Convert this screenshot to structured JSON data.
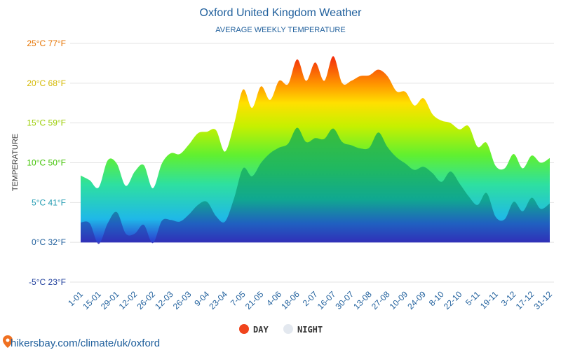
{
  "title": "Oxford United Kingdom Weather",
  "subtitle": "AVERAGE WEEKLY TEMPERATURE",
  "source": "hikersbay.com/climate/uk/oxford",
  "legend": [
    {
      "label": "DAY",
      "color": "#f0441c"
    },
    {
      "label": "NIGHT",
      "color": "#e3e8ef"
    }
  ],
  "chart_data": {
    "type": "area",
    "title": "Oxford United Kingdom Weather",
    "subtitle": "AVERAGE WEEKLY TEMPERATURE",
    "ylabel": "TEMPERATURE",
    "ylim": [
      -5,
      25
    ],
    "grid": true,
    "legend_position": "bottom",
    "y_ticks": [
      {
        "value": 25,
        "label": "25°C 77°F",
        "color": "#e67300"
      },
      {
        "value": 20,
        "label": "20°C 68°F",
        "color": "#d4b800"
      },
      {
        "value": 15,
        "label": "15°C 59°F",
        "color": "#9acd00"
      },
      {
        "value": 10,
        "label": "10°C 50°F",
        "color": "#3ec200"
      },
      {
        "value": 5,
        "label": "5°C 41°F",
        "color": "#1f9ab0"
      },
      {
        "value": 0,
        "label": "0°C 32°F",
        "color": "#1f5f9c"
      },
      {
        "value": -5,
        "label": "-5°C 23°F",
        "color": "#1f3f9c"
      }
    ],
    "x_labels": [
      "1-01",
      "15-01",
      "29-01",
      "12-02",
      "26-02",
      "12-03",
      "26-03",
      "9-04",
      "23-04",
      "7-05",
      "21-05",
      "4-06",
      "18-06",
      "2-07",
      "16-07",
      "30-07",
      "13-08",
      "27-08",
      "10-09",
      "24-09",
      "8-10",
      "22-10",
      "5-11",
      "19-11",
      "3-12",
      "17-12",
      "31-12"
    ],
    "series": [
      {
        "name": "DAY",
        "values": [
          8.4,
          7.8,
          6.9,
          10.3,
          9.9,
          7.1,
          8.9,
          9.7,
          6.8,
          9.9,
          11.2,
          11.1,
          12.3,
          13.7,
          13.9,
          14.1,
          11.4,
          14.8,
          19.2,
          16.9,
          19.6,
          17.9,
          20.3,
          19.9,
          23.0,
          20.3,
          22.6,
          20.3,
          23.4,
          20.0,
          20.3,
          20.9,
          21.0,
          21.7,
          20.9,
          19.0,
          18.9,
          17.2,
          18.1,
          16.1,
          15.3,
          15.0,
          14.2,
          14.6,
          12.0,
          12.5,
          9.6,
          9.3,
          11.1,
          9.3,
          10.9,
          10.0,
          10.6
        ]
      },
      {
        "name": "NIGHT",
        "values": [
          2.5,
          2.4,
          -0.2,
          2.4,
          3.8,
          1.1,
          1.1,
          2.2,
          -0.1,
          2.7,
          2.8,
          2.6,
          3.5,
          4.7,
          5.1,
          3.3,
          2.6,
          5.5,
          9.3,
          8.3,
          10.0,
          11.2,
          11.9,
          12.4,
          14.4,
          12.6,
          13.1,
          13.0,
          14.3,
          12.6,
          12.2,
          11.8,
          11.9,
          13.8,
          12.0,
          10.7,
          9.9,
          9.1,
          9.5,
          8.7,
          7.6,
          8.9,
          7.4,
          5.8,
          4.7,
          6.2,
          3.2,
          2.9,
          5.1,
          3.9,
          5.6,
          4.2,
          4.9
        ]
      }
    ]
  }
}
